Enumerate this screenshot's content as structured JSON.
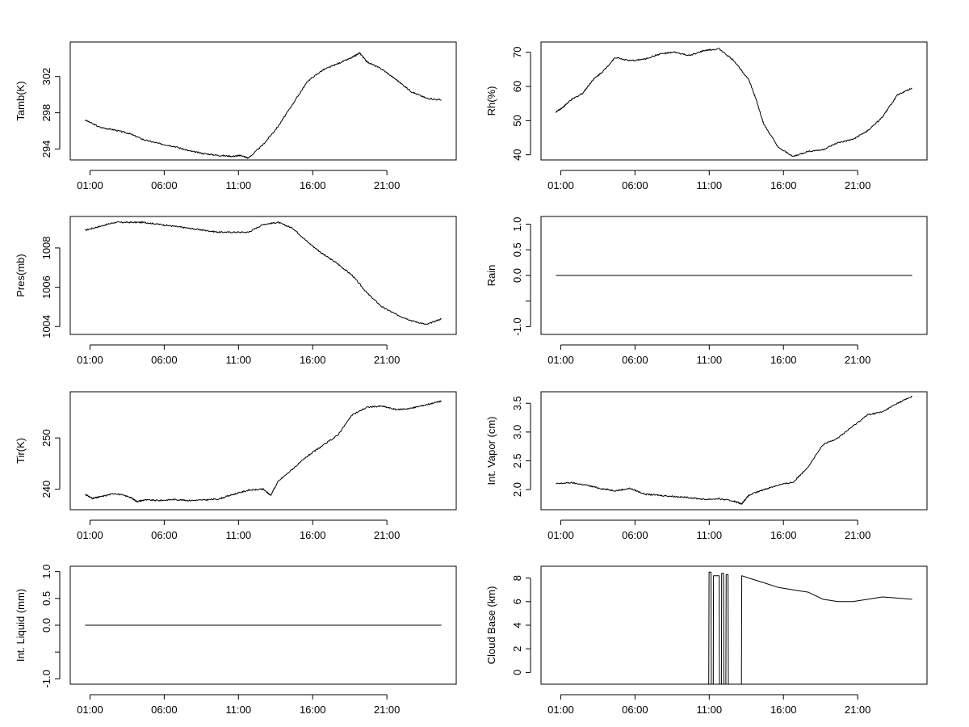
{
  "chart_data": [
    {
      "type": "line",
      "ylabel": "Tamb(K)",
      "ylim": [
        292.8,
        305.8
      ],
      "yticks": [
        294,
        298,
        302
      ],
      "x_range_hours": [
        23.0,
        24.0
      ],
      "xticks": [
        "01:00",
        "06:00",
        "11:00",
        "16:00",
        "21:00"
      ],
      "series": [
        {
          "name": "Tamb(K)",
          "x": [
            0.0,
            1.0,
            2.0,
            3.0,
            4.0,
            5.0,
            6.0,
            7.0,
            8.0,
            9.0,
            10.0,
            10.5,
            11.0,
            12.0,
            13.0,
            14.0,
            15.0,
            16.0,
            17.0,
            18.0,
            18.5,
            19.0,
            20.0,
            21.0,
            22.0,
            23.0,
            24.0
          ],
          "values": [
            297.2,
            296.4,
            296.1,
            295.7,
            295.0,
            294.6,
            294.3,
            293.8,
            293.5,
            293.3,
            293.2,
            293.3,
            293.0,
            294.5,
            296.5,
            299.0,
            301.5,
            302.7,
            303.4,
            304.1,
            304.6,
            303.6,
            302.8,
            301.6,
            300.3,
            299.6,
            299.4
          ]
        }
      ]
    },
    {
      "type": "line",
      "ylabel": "Rh(%)",
      "ylim": [
        38.5,
        73.0
      ],
      "yticks": [
        40,
        50,
        60,
        70
      ],
      "xticks": [
        "01:00",
        "06:00",
        "11:00",
        "16:00",
        "21:00"
      ],
      "series": [
        {
          "name": "Rh(%)",
          "x": [
            0.0,
            0.5,
            1.0,
            1.8,
            2.5,
            3.2,
            4.0,
            5.0,
            6.0,
            7.0,
            8.0,
            9.0,
            10.0,
            11.0,
            12.0,
            13.0,
            13.5,
            14.0,
            15.0,
            16.0,
            17.0,
            18.0,
            19.0,
            20.0,
            21.0,
            22.0,
            23.0,
            24.0
          ],
          "values": [
            52.5,
            54.0,
            56.0,
            58.0,
            62.0,
            64.5,
            68.5,
            67.5,
            68.0,
            69.5,
            70.0,
            69.0,
            70.5,
            71.0,
            67.5,
            62.0,
            56.0,
            49.0,
            42.0,
            39.5,
            41.0,
            41.5,
            43.5,
            44.5,
            47.0,
            51.0,
            57.5,
            59.5
          ]
        }
      ]
    },
    {
      "type": "line",
      "ylabel": "Pres(mb)",
      "ylim": [
        1003.6,
        1009.6
      ],
      "yticks": [
        1004,
        1006,
        1008
      ],
      "xticks": [
        "01:00",
        "06:00",
        "11:00",
        "16:00",
        "21:00"
      ],
      "series": [
        {
          "name": "Pres(mb)",
          "x": [
            0.0,
            1.0,
            2.0,
            3.0,
            4.0,
            5.0,
            6.0,
            7.0,
            8.0,
            9.0,
            10.0,
            11.0,
            12.0,
            13.0,
            14.0,
            15.0,
            16.0,
            17.0,
            18.0,
            19.0,
            20.0,
            21.0,
            22.0,
            23.0,
            24.0
          ],
          "values": [
            1008.9,
            1009.1,
            1009.3,
            1009.3,
            1009.3,
            1009.2,
            1009.1,
            1009.0,
            1008.9,
            1008.8,
            1008.8,
            1008.8,
            1009.2,
            1009.3,
            1009.0,
            1008.3,
            1007.7,
            1007.2,
            1006.6,
            1005.7,
            1005.0,
            1004.6,
            1004.3,
            1004.1,
            1004.4
          ]
        }
      ]
    },
    {
      "type": "line",
      "ylabel": "Rain",
      "ylim": [
        -1.15,
        1.15
      ],
      "yticks": [
        -1.0,
        -0.5,
        0.0,
        0.5,
        1.0
      ],
      "ytick_labels": [
        "-1.0",
        "",
        "0.0",
        "0.5",
        "1.0"
      ],
      "xticks": [
        "01:00",
        "06:00",
        "11:00",
        "16:00",
        "21:00"
      ],
      "series": [
        {
          "name": "Rain",
          "x": [
            0.0,
            24.0
          ],
          "values": [
            0.0,
            0.0
          ]
        }
      ]
    },
    {
      "type": "line",
      "ylabel": "Tir(K)",
      "ylim": [
        236.0,
        259.0
      ],
      "yticks": [
        240,
        250
      ],
      "xticks": [
        "01:00",
        "06:00",
        "11:00",
        "16:00",
        "21:00"
      ],
      "series": [
        {
          "name": "Tir(K)",
          "x": [
            0.0,
            0.5,
            1.0,
            2.0,
            3.0,
            3.5,
            4.0,
            5.0,
            6.0,
            7.0,
            8.0,
            9.0,
            10.0,
            11.0,
            12.0,
            12.5,
            13.0,
            14.0,
            15.0,
            16.0,
            17.0,
            18.0,
            19.0,
            20.0,
            21.0,
            22.0,
            23.0,
            24.0
          ],
          "values": [
            239.0,
            238.2,
            238.5,
            239.2,
            238.5,
            237.6,
            237.9,
            237.8,
            238.0,
            237.8,
            237.9,
            238.1,
            239.0,
            239.8,
            240.0,
            238.8,
            241.5,
            244.0,
            246.5,
            248.5,
            250.5,
            254.5,
            256.0,
            256.2,
            255.5,
            255.8,
            256.5,
            257.2
          ]
        }
      ]
    },
    {
      "type": "line",
      "ylabel": "Int. Vapor (cm)",
      "ylim": [
        1.65,
        3.7
      ],
      "yticks": [
        2.0,
        2.5,
        3.0,
        3.5
      ],
      "ytick_labels": [
        "2.0",
        "2.5",
        "3.0",
        "3.5"
      ],
      "xticks": [
        "01:00",
        "06:00",
        "11:00",
        "16:00",
        "21:00"
      ],
      "series": [
        {
          "name": "Int. Vapor (cm)",
          "x": [
            0.0,
            1.0,
            2.0,
            3.0,
            4.0,
            5.0,
            6.0,
            7.0,
            8.0,
            9.0,
            10.0,
            11.0,
            12.0,
            12.5,
            13.0,
            14.0,
            15.0,
            16.0,
            17.0,
            18.0,
            19.0,
            20.0,
            21.0,
            22.0,
            23.0,
            24.0
          ],
          "values": [
            2.1,
            2.12,
            2.08,
            2.02,
            1.98,
            2.02,
            1.92,
            1.9,
            1.88,
            1.86,
            1.83,
            1.84,
            1.8,
            1.75,
            1.9,
            2.0,
            2.08,
            2.13,
            2.4,
            2.78,
            2.9,
            3.1,
            3.3,
            3.35,
            3.5,
            3.62
          ]
        }
      ]
    },
    {
      "type": "line",
      "ylabel": "Int. Liquid (mm)",
      "ylim": [
        -1.1,
        1.1
      ],
      "yticks": [
        -1.0,
        -0.5,
        0.0,
        0.5,
        1.0
      ],
      "ytick_labels": [
        "-1.0",
        "",
        "0.0",
        "0.5",
        "1.0"
      ],
      "xticks": [
        "01:00",
        "06:00",
        "11:00",
        "16:00",
        "21:00"
      ],
      "series": [
        {
          "name": "Int. Liquid (mm)",
          "x": [
            0.0,
            24.0
          ],
          "values": [
            0.0,
            0.0
          ]
        }
      ]
    },
    {
      "type": "line",
      "ylabel": "Cloud Base (km)",
      "ylim": [
        -1.0,
        9.0
      ],
      "yticks": [
        0,
        2,
        4,
        6,
        8
      ],
      "xticks": [
        "01:00",
        "06:00",
        "11:00",
        "16:00",
        "21:00"
      ],
      "series": [
        {
          "name": "Cloud Base (km)",
          "x": [
            0.0,
            10.3,
            10.32,
            10.45,
            10.47,
            10.6,
            10.62,
            11.0,
            11.02,
            11.15,
            11.17,
            11.3,
            11.32,
            11.45,
            11.47,
            11.6,
            11.62,
            12.5,
            12.52,
            13.0,
            14.0,
            15.0,
            16.0,
            17.0,
            18.0,
            19.0,
            20.0,
            21.0,
            22.0,
            23.0,
            24.0
          ],
          "values": [
            -1.0,
            -1.0,
            8.5,
            8.5,
            -1.0,
            -1.0,
            8.2,
            8.2,
            -1.0,
            -1.0,
            8.4,
            8.4,
            -1.0,
            -1.0,
            8.3,
            8.3,
            -1.0,
            -1.0,
            8.2,
            8.0,
            7.6,
            7.2,
            7.0,
            6.8,
            6.2,
            6.0,
            6.0,
            6.2,
            6.4,
            6.3,
            6.2
          ]
        }
      ]
    }
  ]
}
